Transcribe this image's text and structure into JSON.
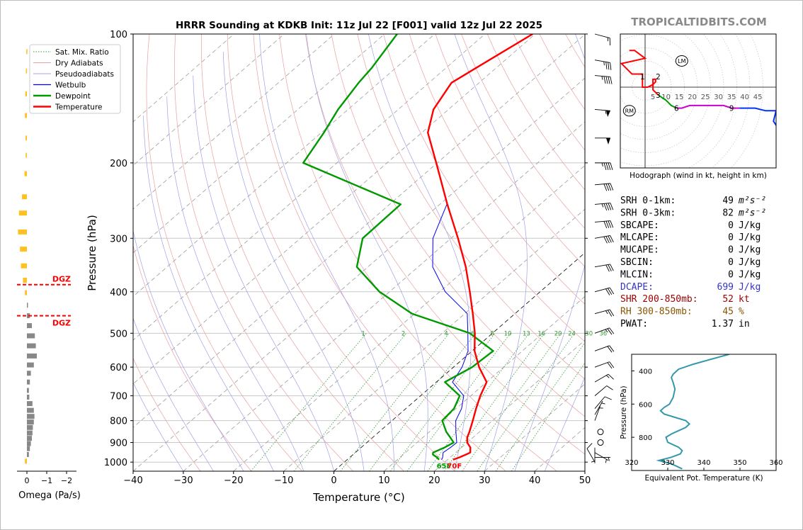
{
  "header": {
    "title": "HRRR Sounding at KDKB Init: 11z Jul 22 [F001] valid 12z Jul 22 2025",
    "brand": "TROPICALTIDBITS.COM"
  },
  "colors": {
    "temperature": "#ff0000",
    "dewpoint": "#009900",
    "wetbulb": "#0000ee",
    "dry_adiabat": "#e8a0a0",
    "moist_adiabat": "#a0a0e8",
    "mixing_ratio": "#339933",
    "isotherm": "#888888",
    "dgz": "#ff0000",
    "omega_up": "#ffc020",
    "omega_down": "#888888",
    "theta_e": "#3399aa",
    "dcape": "#3333cc",
    "shear": "#990000",
    "rh": "#885500",
    "hodo_0_3": "#ff0000",
    "hodo_3_6": "#009900",
    "hodo_6_9": "#cc00cc",
    "hodo_9_12": "#0033ff"
  },
  "legend": {
    "items": [
      {
        "label": "Sat. Mix. Ratio",
        "style": "dotted",
        "color": "#339933"
      },
      {
        "label": "Dry Adiabats",
        "style": "solid-thin",
        "color": "#e8a0a0"
      },
      {
        "label": "Pseudoadiabats",
        "style": "solid-thin",
        "color": "#a0a0e8"
      },
      {
        "label": "Wetbulb",
        "style": "solid",
        "color": "#0000ee"
      },
      {
        "label": "Dewpoint",
        "style": "solid-thick",
        "color": "#009900"
      },
      {
        "label": "Temperature",
        "style": "solid-thick",
        "color": "#ff0000"
      }
    ]
  },
  "surface": {
    "dewpoint_label": "65F",
    "temperature_label": "70F"
  },
  "dgz": {
    "label": "DGZ",
    "levels_hpa": [
      385,
      455
    ]
  },
  "omega_panel": {
    "xlabel": "Omega (Pa/s)",
    "ticks": [
      "0",
      "−1",
      "−2"
    ],
    "tick_values": [
      0,
      -1,
      -2
    ],
    "xlim": [
      0.5,
      -2.5
    ]
  },
  "hodograph": {
    "caption": "Hodograph (wind in kt, height in km)",
    "ring_labels": [
      "5",
      "10",
      "15",
      "20",
      "25",
      "30",
      "35",
      "40",
      "45"
    ],
    "ring_values": [
      5,
      10,
      15,
      20,
      25,
      30,
      35,
      40,
      45
    ],
    "markers": {
      "lm": "LM",
      "rm": "RM"
    },
    "lm_uv": [
      14,
      10
    ],
    "rm_uv": [
      -6,
      -9
    ],
    "heights": [
      {
        "label": "1",
        "u": -1,
        "v": 4
      },
      {
        "label": "2",
        "u": 5,
        "v": 4
      },
      {
        "label": "3",
        "u": 5,
        "v": -3
      },
      {
        "label": "6",
        "u": 12,
        "v": -8
      },
      {
        "label": "9",
        "u": 33,
        "v": -8
      }
    ],
    "trace": [
      {
        "u": -6,
        "v": 14
      },
      {
        "u": -4,
        "v": 14
      },
      {
        "u": 0,
        "v": 11
      },
      {
        "u": -9,
        "v": 9
      },
      {
        "u": -5,
        "v": 5
      },
      {
        "u": -1,
        "v": 5
      },
      {
        "u": -1,
        "v": 0
      },
      {
        "u": 1,
        "v": 0
      },
      {
        "u": 3,
        "v": 1
      },
      {
        "u": 4,
        "v": 2
      },
      {
        "u": 4,
        "v": 3
      },
      {
        "u": 3,
        "v": 3
      },
      {
        "u": 3,
        "v": -1
      },
      {
        "u": 5,
        "v": -3
      },
      {
        "u": 8,
        "v": -5
      },
      {
        "u": 10,
        "v": -7
      },
      {
        "u": 12,
        "v": -8
      },
      {
        "u": 14,
        "v": -8
      },
      {
        "u": 17,
        "v": -7
      },
      {
        "u": 20,
        "v": -7
      },
      {
        "u": 25,
        "v": -7
      },
      {
        "u": 30,
        "v": -7
      },
      {
        "u": 33,
        "v": -8
      },
      {
        "u": 36,
        "v": -8
      },
      {
        "u": 42,
        "v": -8
      },
      {
        "u": 46,
        "v": -9
      },
      {
        "u": 48,
        "v": -9
      },
      {
        "u": 50,
        "v": -9
      },
      {
        "u": 49,
        "v": -13
      },
      {
        "u": 51,
        "v": -16
      }
    ],
    "segment_breaks": [
      13,
      16,
      23
    ]
  },
  "indices": [
    {
      "name": "SRH 0-1km:",
      "value": "49",
      "unit_html": "m²s⁻²",
      "color": "#000000"
    },
    {
      "name": "SRH 0-3km:",
      "value": "82",
      "unit_html": "m²s⁻²",
      "color": "#000000"
    },
    {
      "name": "SBCAPE:",
      "value": "0",
      "unit_html": "J/kg",
      "color": "#000000"
    },
    {
      "name": "MLCAPE:",
      "value": "0",
      "unit_html": "J/kg",
      "color": "#000000"
    },
    {
      "name": "MUCAPE:",
      "value": "0",
      "unit_html": "J/kg",
      "color": "#000000"
    },
    {
      "name": "SBCIN:",
      "value": "0",
      "unit_html": "J/kg",
      "color": "#000000"
    },
    {
      "name": "MLCIN:",
      "value": "0",
      "unit_html": "J/kg",
      "color": "#000000"
    },
    {
      "name": "DCAPE:",
      "value": "699",
      "unit_html": "J/kg",
      "color": "#3333cc"
    },
    {
      "name": "SHR 200-850mb:",
      "value": "52",
      "unit_html": "kt",
      "color": "#990000"
    },
    {
      "name": "RH 300-850mb:",
      "value": "45",
      "unit_html": "%",
      "color": "#885500"
    },
    {
      "name": "PWAT:",
      "value": "1.37",
      "unit_html": "in",
      "color": "#000000"
    }
  ],
  "theta_e_panel": {
    "ylabel": "Pressure (hPa)",
    "xlabel": "Equivalent Pot. Temperature (K)",
    "xticks": [
      "320",
      "330",
      "340",
      "350",
      "360"
    ],
    "xtick_values": [
      320,
      330,
      340,
      350,
      360
    ],
    "yticks": [
      "400",
      "600",
      "800"
    ],
    "ytick_values": [
      400,
      600,
      800
    ],
    "xlim": [
      320,
      360
    ],
    "ylim": [
      1000,
      300
    ]
  },
  "chart_data": {
    "type": "line",
    "title": "HRRR Sounding at KDKB Init: 11z Jul 22 [F001] valid 12z Jul 22 2025",
    "xlabel": "Temperature (°C)",
    "ylabel": "Pressure (hPa)",
    "xlim": [
      -40,
      50
    ],
    "ylim": [
      1050,
      100
    ],
    "yscale": "log",
    "skew": true,
    "x_ticks": [
      "−40",
      "−30",
      "−20",
      "−10",
      "0",
      "10",
      "20",
      "30",
      "40",
      "50"
    ],
    "x_tick_values": [
      -40,
      -30,
      -20,
      -10,
      0,
      10,
      20,
      30,
      40,
      50
    ],
    "y_ticks": [
      "100",
      "200",
      "300",
      "400",
      "500",
      "600",
      "700",
      "800",
      "900",
      "1000"
    ],
    "y_tick_values": [
      100,
      200,
      300,
      400,
      500,
      600,
      700,
      800,
      900,
      1000
    ],
    "mixing_ratio_labels": [
      "1",
      "2",
      "4",
      "6",
      "8",
      "10",
      "13",
      "16",
      "20",
      "24",
      "30",
      "36"
    ],
    "mixing_ratio_values": [
      1,
      2,
      4,
      6,
      8,
      10,
      13,
      16,
      20,
      24,
      30,
      36
    ],
    "series": [
      {
        "name": "Temperature",
        "p": [
          987,
          975,
          960,
          950,
          925,
          900,
          875,
          850,
          800,
          750,
          700,
          650,
          600,
          550,
          500,
          450,
          400,
          350,
          300,
          250,
          200,
          170,
          150,
          130,
          120,
          100
        ],
        "t": [
          21.1,
          21.8,
          22.5,
          22.9,
          21.8,
          20.0,
          18.8,
          18.0,
          16.1,
          14.0,
          11.9,
          10.0,
          5.1,
          0.5,
          -3.5,
          -8.4,
          -14.0,
          -20.5,
          -28.6,
          -38.5,
          -50.2,
          -58.8,
          -63.0,
          -65.5,
          -64.0,
          -60.5
        ]
      },
      {
        "name": "Dewpoint",
        "p": [
          987,
          975,
          960,
          950,
          925,
          900,
          875,
          850,
          800,
          750,
          700,
          650,
          600,
          550,
          500,
          450,
          400,
          350,
          300,
          250,
          200,
          170,
          150,
          130,
          120,
          100
        ],
        "t": [
          18.3,
          17.4,
          15.9,
          15.5,
          16.6,
          17.3,
          15.4,
          13.4,
          10.0,
          9.6,
          7.8,
          1.7,
          3.7,
          4.2,
          -4.5,
          -20.5,
          -32.0,
          -42.2,
          -47.6,
          -47.8,
          -76.7,
          -79.5,
          -82.0,
          -84.0,
          -84.8,
          -87.5
        ]
      },
      {
        "name": "Wetbulb",
        "p": [
          987,
          975,
          950,
          925,
          900,
          850,
          800,
          750,
          700,
          650,
          600,
          550,
          500,
          450,
          400,
          350,
          300,
          250
        ],
        "t": [
          18.8,
          18.5,
          17.5,
          17.8,
          17.9,
          15.3,
          12.7,
          11.1,
          8.6,
          3.2,
          1.7,
          -0.8,
          -4.9,
          -9.5,
          -18.9,
          -27.1,
          -33.6,
          -38.6
        ]
      }
    ],
    "wind_barbs": [
      {
        "p": 1000,
        "spd": 10,
        "dir": 150
      },
      {
        "p": 975,
        "spd": 5,
        "dir": 270
      },
      {
        "p": 950,
        "spd": 5,
        "dir": 300
      },
      {
        "p": 925,
        "spd": 5,
        "dir": 0
      },
      {
        "p": 900,
        "spd": 0,
        "dir": 0
      },
      {
        "p": 850,
        "spd": 0,
        "dir": 0
      },
      {
        "p": 800,
        "spd": 5,
        "dir": 200
      },
      {
        "p": 775,
        "spd": 5,
        "dir": 210
      },
      {
        "p": 750,
        "spd": 10,
        "dir": 220
      },
      {
        "p": 700,
        "spd": 10,
        "dir": 230
      },
      {
        "p": 650,
        "spd": 15,
        "dir": 240
      },
      {
        "p": 600,
        "spd": 20,
        "dir": 250
      },
      {
        "p": 550,
        "spd": 20,
        "dir": 250
      },
      {
        "p": 500,
        "spd": 25,
        "dir": 250
      },
      {
        "p": 450,
        "spd": 25,
        "dir": 255
      },
      {
        "p": 400,
        "spd": 30,
        "dir": 255
      },
      {
        "p": 350,
        "spd": 30,
        "dir": 260
      },
      {
        "p": 300,
        "spd": 40,
        "dir": 260
      },
      {
        "p": 275,
        "spd": 40,
        "dir": 265
      },
      {
        "p": 250,
        "spd": 45,
        "dir": 265
      },
      {
        "p": 225,
        "spd": 40,
        "dir": 265
      },
      {
        "p": 200,
        "spd": 45,
        "dir": 270
      },
      {
        "p": 175,
        "spd": 50,
        "dir": 270
      },
      {
        "p": 150,
        "spd": 55,
        "dir": 275
      },
      {
        "p": 125,
        "spd": 45,
        "dir": 275
      },
      {
        "p": 115,
        "spd": 35,
        "dir": 280
      },
      {
        "p": 100,
        "spd": 15,
        "dir": 285
      }
    ],
    "omega": {
      "p": [
        110,
        122,
        138,
        155,
        175,
        192,
        212,
        240,
        262,
        290,
        318,
        348,
        376,
        402,
        430,
        455,
        480,
        507,
        535,
        565,
        593,
        620,
        650,
        680,
        705,
        730,
        757,
        782,
        806,
        830,
        855,
        880,
        905,
        930,
        960,
        995
      ],
      "w": [
        0.03,
        0.05,
        0.08,
        0.1,
        0.07,
        0.06,
        0.12,
        0.25,
        0.4,
        0.45,
        0.35,
        0.3,
        0.2,
        0.1,
        -0.05,
        -0.15,
        -0.25,
        -0.4,
        -0.45,
        -0.5,
        -0.35,
        -0.2,
        -0.15,
        -0.1,
        -0.12,
        -0.28,
        -0.35,
        -0.38,
        -0.35,
        -0.3,
        -0.28,
        -0.25,
        -0.2,
        -0.15,
        -0.1,
        0.1
      ]
    },
    "theta_e": {
      "p": [
        300,
        330,
        360,
        390,
        420,
        440,
        470,
        510,
        560,
        600,
        620,
        640,
        660,
        680,
        700,
        720,
        740,
        760,
        780,
        800,
        830,
        860,
        880,
        900,
        920,
        940,
        960,
        990
      ],
      "theta": [
        347.0,
        342.0,
        337.0,
        333.0,
        331.5,
        331.0,
        331.5,
        332.0,
        331.5,
        330.5,
        329.0,
        328.0,
        329.0,
        332.0,
        335.0,
        336.0,
        335.0,
        333.0,
        331.0,
        329.5,
        330.0,
        333.0,
        334.0,
        333.5,
        331.0,
        327.5,
        331.0,
        334.0
      ]
    }
  }
}
